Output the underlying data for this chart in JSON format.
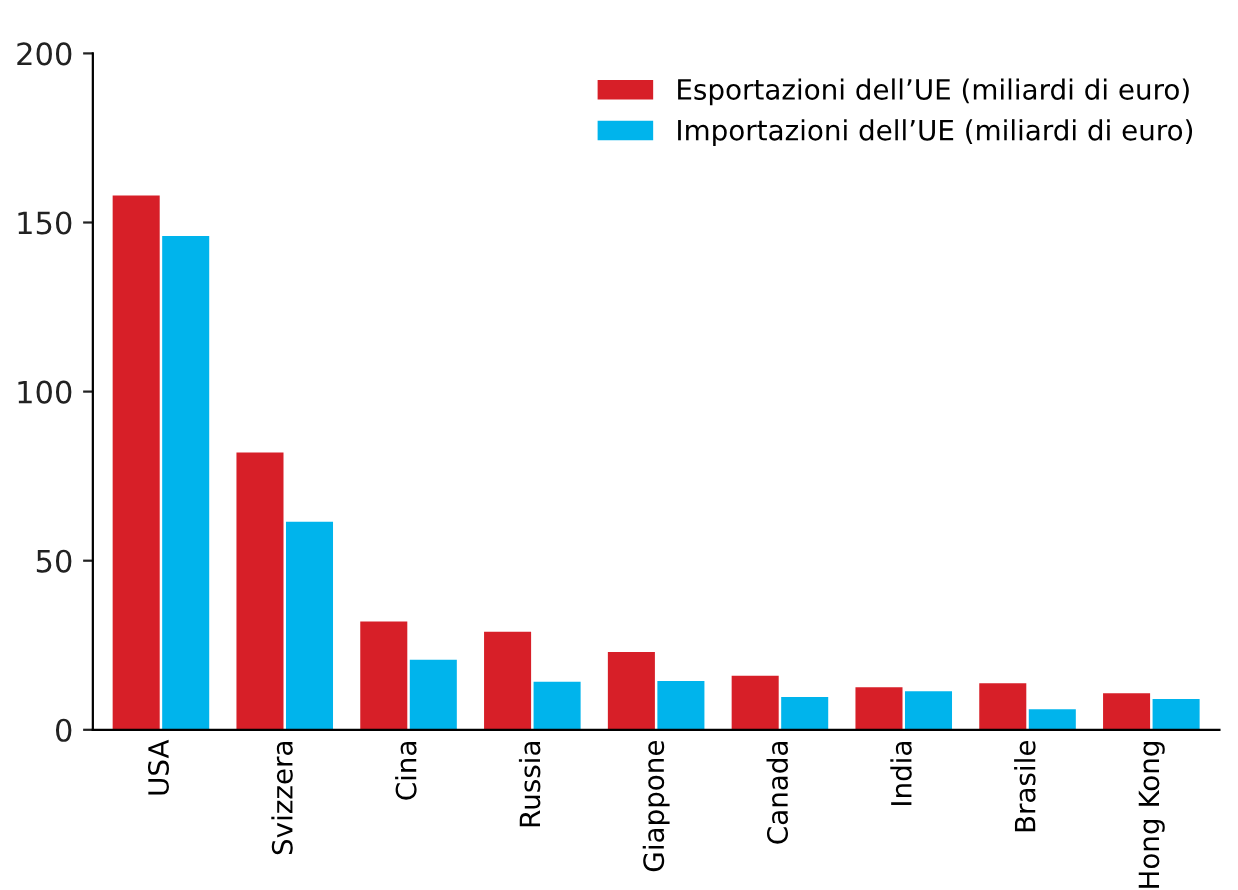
{
  "chart_data": {
    "type": "bar",
    "categories": [
      "USA",
      "Svizzera",
      "Cina",
      "Russia",
      "Giappone",
      "Canada",
      "India",
      "Brasile",
      "Hong Kong"
    ],
    "series": [
      {
        "name": "Esportazioni dell’UE (miliardi di euro)",
        "color": "#d71f28",
        "values": [
          158,
          82,
          32,
          29,
          23,
          16,
          12.6,
          13.8,
          10.8
        ]
      },
      {
        "name": "Importazioni dell’UE (miliardi di euro)",
        "color": "#00b4ec",
        "values": [
          146,
          61.5,
          20.7,
          14.2,
          14.4,
          9.7,
          11.4,
          6.1,
          9.1
        ]
      }
    ],
    "ylim": [
      0,
      200
    ],
    "yticks": [
      0,
      50,
      100,
      150,
      200
    ],
    "grid": false,
    "legend": "top right"
  }
}
